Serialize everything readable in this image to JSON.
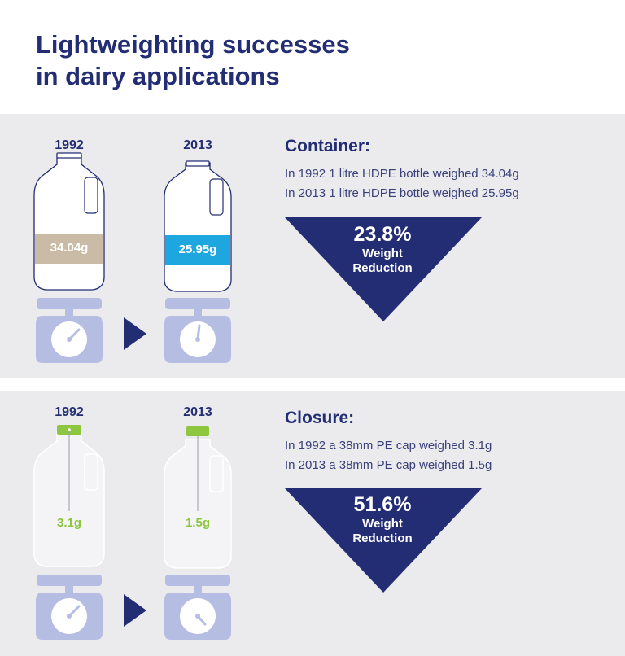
{
  "title": {
    "line1": "Lightweighting successes",
    "line2": "in dairy applications"
  },
  "container": {
    "heading": "Container:",
    "desc_1992": "In 1992 1 litre HDPE bottle weighed 34.04g",
    "desc_2013": "In 2013 1 litre HDPE bottle weighed 25.95g",
    "year_before": "1992",
    "year_after": "2013",
    "weight_before": "34.04g",
    "weight_after": "25.95g",
    "reduction_pct": "23.8%",
    "reduction_line1": "Weight",
    "reduction_line2": "Reduction"
  },
  "closure": {
    "heading": "Closure:",
    "desc_1992": "In 1992 a 38mm PE cap weighed 3.1g",
    "desc_2013": "In 2013 a 38mm PE cap weighed 1.5g",
    "year_before": "1992",
    "year_after": "2013",
    "weight_before": "3.1g",
    "weight_after": "1.5g",
    "reduction_pct": "51.6%",
    "reduction_line1": "Weight",
    "reduction_line2": "Reduction"
  },
  "colors": {
    "navy": "#232d73",
    "panel": "#ebebee",
    "beige": "#c9bba5",
    "blue": "#1ea6df",
    "green": "#8dc63f",
    "scale": "#b6bde2"
  }
}
